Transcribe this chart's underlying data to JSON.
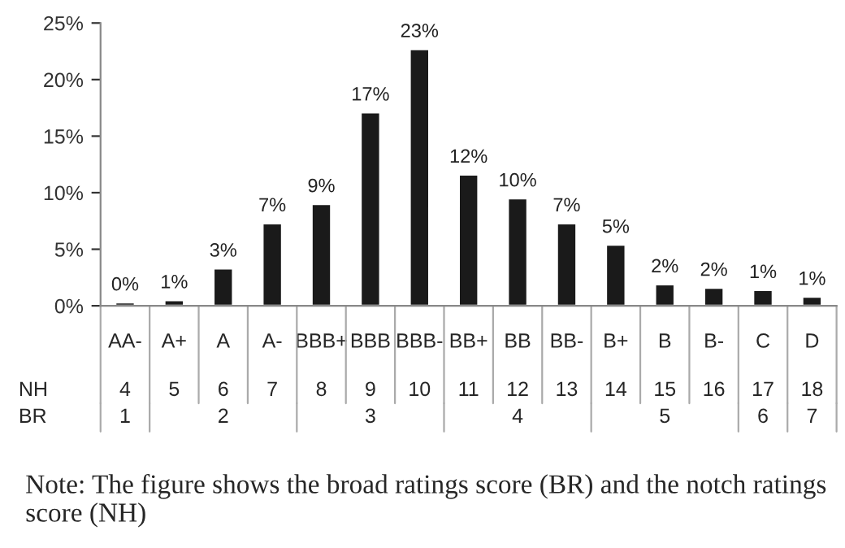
{
  "chart_data": {
    "type": "bar",
    "categories": [
      "AA-",
      "A+",
      "A",
      "A-",
      "BBB+",
      "BBB",
      "BBB-",
      "BB+",
      "BB",
      "BB-",
      "B+",
      "B",
      "B-",
      "C",
      "D"
    ],
    "values": [
      0.3,
      0.5,
      3.3,
      7.3,
      9.0,
      17.1,
      22.7,
      11.6,
      9.5,
      7.3,
      5.4,
      1.9,
      1.6,
      1.4,
      0.8
    ],
    "value_labels": [
      "0%",
      "1%",
      "3%",
      "7%",
      "9%",
      "17%",
      "23%",
      "12%",
      "10%",
      "7%",
      "5%",
      "2%",
      "2%",
      "1%",
      "1%"
    ],
    "color": "#1a1a1a",
    "ylim": [
      0,
      25
    ],
    "yticks": [
      {
        "value": 0,
        "label": "0%"
      },
      {
        "value": 5,
        "label": "5%"
      },
      {
        "value": 10,
        "label": "10%"
      },
      {
        "value": 15,
        "label": "15%"
      },
      {
        "value": 20,
        "label": "20%"
      },
      {
        "value": 25,
        "label": "25%"
      }
    ],
    "grid": false,
    "legend": false,
    "annotations": [
      "NH",
      "BR",
      "4",
      "5",
      "6",
      "7",
      "8",
      "9",
      "10",
      "11",
      "12",
      "13",
      "14",
      "15",
      "16",
      "17",
      "18",
      "1",
      "2",
      "3",
      "4",
      "5",
      "6",
      "7",
      "Note: The figure shows the broad ratings score (BR) and the notch ratings score (NH)"
    ]
  }
}
